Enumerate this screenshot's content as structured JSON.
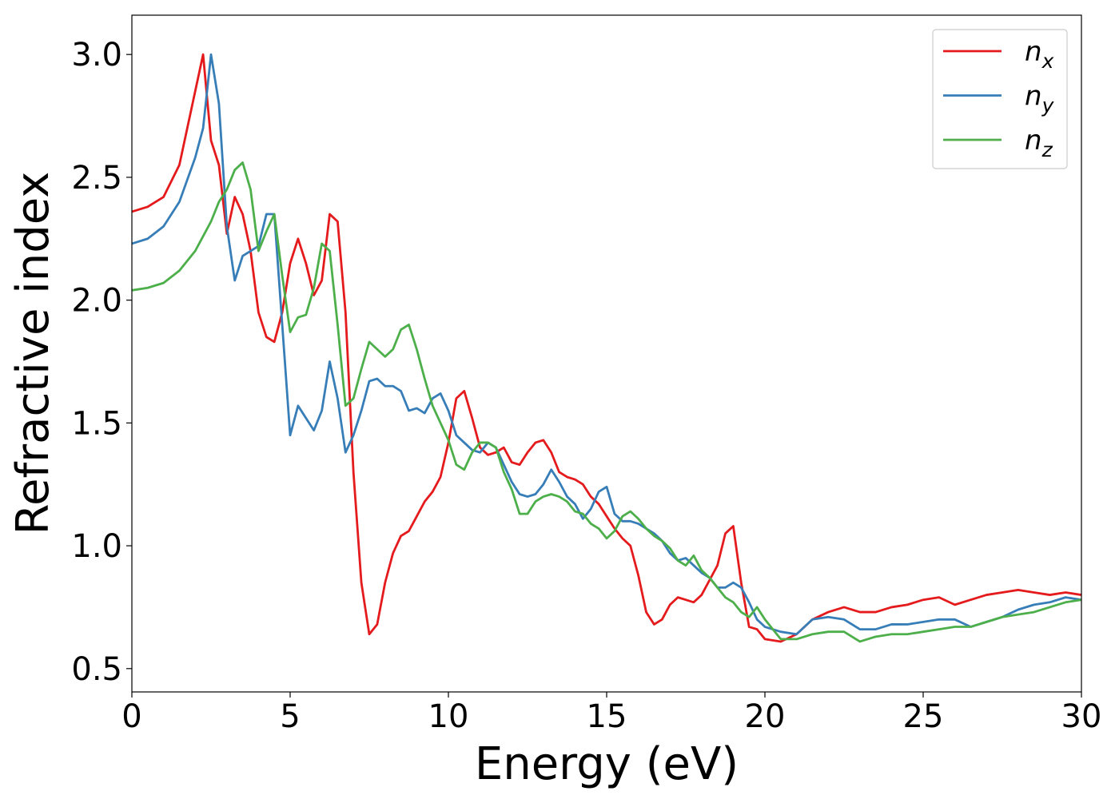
{
  "chart_data": {
    "type": "line",
    "x_label": "Energy (eV)",
    "y_label": "Refractive index",
    "x": [
      0,
      0.5,
      1,
      1.5,
      2,
      2.25,
      2.5,
      2.75,
      3,
      3.25,
      3.5,
      3.75,
      4,
      4.25,
      4.5,
      4.75,
      5,
      5.25,
      5.5,
      5.75,
      6,
      6.25,
      6.5,
      6.75,
      7,
      7.25,
      7.5,
      7.75,
      8,
      8.25,
      8.5,
      8.75,
      9,
      9.25,
      9.5,
      9.75,
      10,
      10.25,
      10.5,
      10.75,
      11,
      11.25,
      11.5,
      11.75,
      12,
      12.25,
      12.5,
      12.75,
      13,
      13.25,
      13.5,
      13.75,
      14,
      14.25,
      14.5,
      14.75,
      15,
      15.25,
      15.5,
      15.75,
      16,
      16.25,
      16.5,
      16.75,
      17,
      17.25,
      17.5,
      17.75,
      18,
      18.25,
      18.5,
      18.75,
      19,
      19.25,
      19.5,
      19.75,
      20,
      20.5,
      21,
      21.5,
      22,
      22.5,
      23,
      23.5,
      24,
      24.5,
      25,
      25.5,
      26,
      26.5,
      27,
      27.5,
      28,
      28.5,
      29,
      29.5,
      30
    ],
    "series": [
      {
        "name": "n_x",
        "color": "#e41a1c",
        "values": [
          2.36,
          2.38,
          2.42,
          2.55,
          2.85,
          3.0,
          2.65,
          2.55,
          2.27,
          2.42,
          2.35,
          2.2,
          1.95,
          1.85,
          1.83,
          1.95,
          2.15,
          2.25,
          2.15,
          2.02,
          2.08,
          2.35,
          2.32,
          1.95,
          1.3,
          0.85,
          0.64,
          0.68,
          0.85,
          0.97,
          1.04,
          1.06,
          1.12,
          1.18,
          1.22,
          1.28,
          1.42,
          1.6,
          1.63,
          1.52,
          1.4,
          1.37,
          1.38,
          1.4,
          1.34,
          1.33,
          1.38,
          1.42,
          1.43,
          1.38,
          1.3,
          1.28,
          1.27,
          1.25,
          1.2,
          1.17,
          1.12,
          1.07,
          1.03,
          1.0,
          0.88,
          0.73,
          0.68,
          0.7,
          0.76,
          0.79,
          0.78,
          0.77,
          0.8,
          0.86,
          0.92,
          1.05,
          1.08,
          0.85,
          0.67,
          0.66,
          0.62,
          0.61,
          0.64,
          0.7,
          0.73,
          0.75,
          0.73,
          0.73,
          0.75,
          0.76,
          0.78,
          0.79,
          0.76,
          0.78,
          0.8,
          0.81,
          0.82,
          0.81,
          0.8,
          0.81,
          0.8
        ]
      },
      {
        "name": "n_y",
        "color": "#377eb8",
        "values": [
          2.23,
          2.25,
          2.3,
          2.4,
          2.58,
          2.7,
          3.0,
          2.8,
          2.3,
          2.08,
          2.18,
          2.2,
          2.22,
          2.35,
          2.35,
          1.9,
          1.45,
          1.57,
          1.52,
          1.47,
          1.55,
          1.75,
          1.6,
          1.38,
          1.45,
          1.55,
          1.67,
          1.68,
          1.65,
          1.65,
          1.63,
          1.55,
          1.56,
          1.54,
          1.6,
          1.62,
          1.55,
          1.45,
          1.42,
          1.39,
          1.38,
          1.42,
          1.4,
          1.33,
          1.26,
          1.21,
          1.2,
          1.21,
          1.25,
          1.31,
          1.26,
          1.2,
          1.17,
          1.11,
          1.15,
          1.22,
          1.24,
          1.13,
          1.1,
          1.1,
          1.09,
          1.07,
          1.05,
          1.02,
          0.97,
          0.94,
          0.95,
          0.92,
          0.89,
          0.87,
          0.83,
          0.83,
          0.85,
          0.83,
          0.77,
          0.7,
          0.67,
          0.65,
          0.64,
          0.7,
          0.71,
          0.7,
          0.66,
          0.66,
          0.68,
          0.68,
          0.69,
          0.7,
          0.7,
          0.67,
          0.69,
          0.71,
          0.74,
          0.76,
          0.77,
          0.79,
          0.78
        ]
      },
      {
        "name": "n_z",
        "color": "#4daf4a",
        "values": [
          2.04,
          2.05,
          2.07,
          2.12,
          2.2,
          2.26,
          2.32,
          2.4,
          2.45,
          2.53,
          2.56,
          2.45,
          2.2,
          2.28,
          2.35,
          2.1,
          1.87,
          1.93,
          1.94,
          2.05,
          2.23,
          2.2,
          1.9,
          1.57,
          1.6,
          1.72,
          1.83,
          1.8,
          1.77,
          1.8,
          1.88,
          1.9,
          1.8,
          1.68,
          1.57,
          1.5,
          1.43,
          1.33,
          1.31,
          1.38,
          1.42,
          1.42,
          1.4,
          1.3,
          1.23,
          1.13,
          1.13,
          1.18,
          1.2,
          1.21,
          1.2,
          1.18,
          1.14,
          1.13,
          1.09,
          1.07,
          1.03,
          1.06,
          1.12,
          1.14,
          1.11,
          1.07,
          1.04,
          1.02,
          0.99,
          0.94,
          0.92,
          0.96,
          0.9,
          0.87,
          0.83,
          0.79,
          0.77,
          0.73,
          0.71,
          0.75,
          0.7,
          0.62,
          0.62,
          0.64,
          0.65,
          0.65,
          0.61,
          0.63,
          0.64,
          0.64,
          0.65,
          0.66,
          0.67,
          0.67,
          0.69,
          0.71,
          0.72,
          0.73,
          0.75,
          0.77,
          0.78
        ]
      }
    ],
    "xlim": [
      0,
      30
    ],
    "xticks": [
      0,
      5,
      10,
      15,
      20,
      25,
      30
    ],
    "ylim": [
      0.405,
      3.16
    ],
    "yticks": [
      {
        "value": 0.5,
        "label": "0.5"
      },
      {
        "value": 1.0,
        "label": "1.0"
      },
      {
        "value": 1.5,
        "label": "1.5"
      },
      {
        "value": 2.0,
        "label": "2.0"
      },
      {
        "value": 2.5,
        "label": "2.5"
      },
      {
        "value": 3.0,
        "label": "3.0"
      }
    ],
    "grid": false,
    "legend": "upper right"
  }
}
